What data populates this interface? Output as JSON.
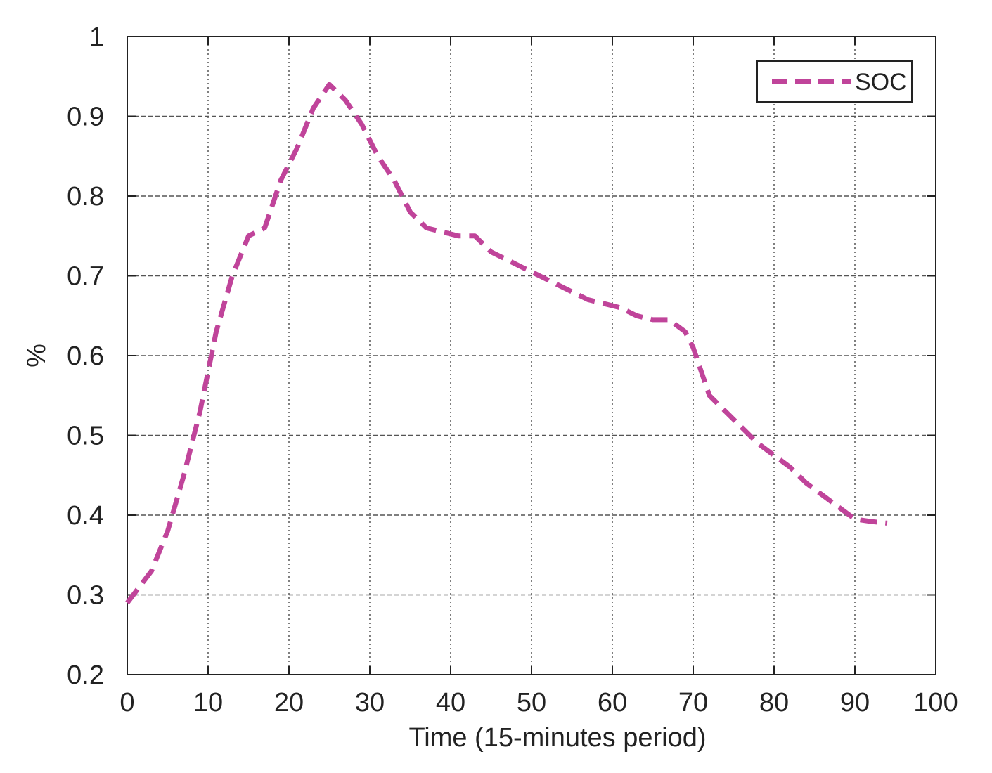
{
  "chart_data": {
    "type": "line",
    "title": "",
    "xlabel": "Time (15-minutes period)",
    "ylabel": "%",
    "xlim": [
      0,
      100
    ],
    "ylim": [
      0.2,
      1
    ],
    "x_ticks": [
      0,
      10,
      20,
      30,
      40,
      50,
      60,
      70,
      80,
      90,
      100
    ],
    "x_tick_labels": [
      "0",
      "10",
      "20",
      "30",
      "40",
      "50",
      "60",
      "70",
      "80",
      "90",
      "100"
    ],
    "y_ticks": [
      0.2,
      0.3,
      0.4,
      0.5,
      0.6,
      0.7,
      0.8,
      0.9,
      1
    ],
    "y_tick_labels": [
      "0.2",
      "0.3",
      "0.4",
      "0.5",
      "0.6",
      "0.7",
      "0.8",
      "0.9",
      "1"
    ],
    "grid": true,
    "legend_position": "top-right",
    "series": [
      {
        "name": "SOC",
        "color": "#c0449a",
        "line_style": "dashed",
        "x": [
          0,
          3,
          5,
          7,
          9,
          11,
          13,
          15,
          17,
          19,
          21,
          23,
          25,
          27,
          29,
          31,
          33,
          35,
          37,
          39,
          41,
          43,
          45,
          47,
          49,
          51,
          53,
          55,
          57,
          59,
          61,
          63,
          65,
          67,
          69,
          70,
          71,
          72,
          74,
          76,
          78,
          80,
          82,
          84,
          86,
          88,
          90,
          92,
          94
        ],
        "y": [
          0.29,
          0.33,
          0.38,
          0.45,
          0.53,
          0.63,
          0.7,
          0.75,
          0.76,
          0.82,
          0.86,
          0.91,
          0.94,
          0.92,
          0.89,
          0.85,
          0.82,
          0.78,
          0.76,
          0.755,
          0.75,
          0.75,
          0.73,
          0.72,
          0.71,
          0.7,
          0.69,
          0.68,
          0.67,
          0.665,
          0.66,
          0.65,
          0.645,
          0.645,
          0.63,
          0.61,
          0.58,
          0.55,
          0.53,
          0.51,
          0.49,
          0.475,
          0.46,
          0.44,
          0.425,
          0.41,
          0.395,
          0.392,
          0.39
        ]
      }
    ]
  }
}
